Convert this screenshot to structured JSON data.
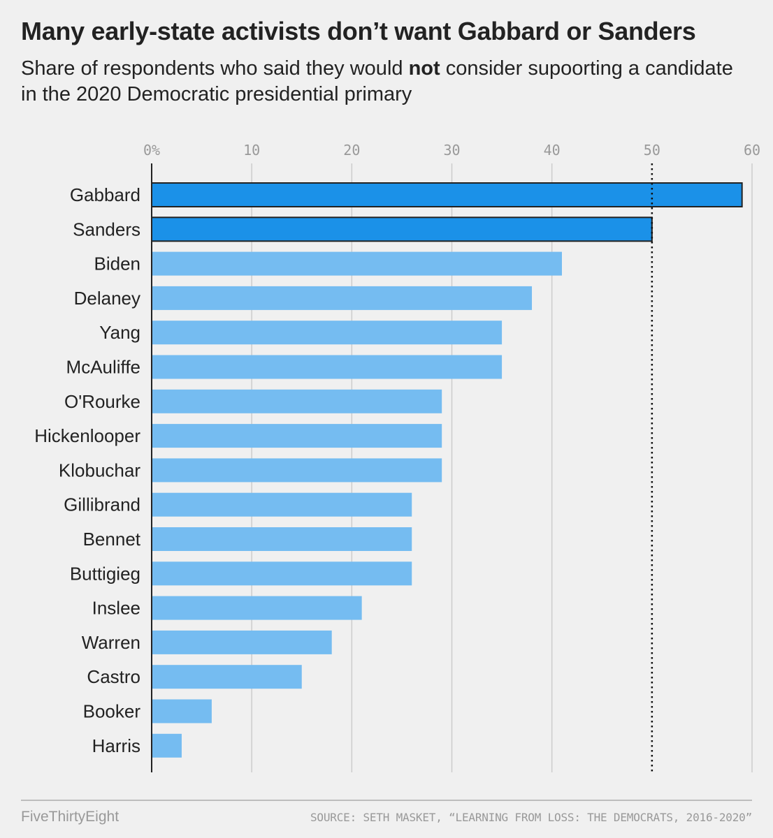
{
  "header": {
    "title": "Many early-state activists don’t want Gabbard or Sanders",
    "subtitle_before": "Share of respondents who said they would ",
    "subtitle_bold": "not",
    "subtitle_after": " consider supoorting a candidate in the 2020 Democratic presidential primary"
  },
  "footer": {
    "brand": "FiveThirtyEight",
    "source": "SOURCE: SETH MASKET, “LEARNING FROM LOSS: THE DEMOCRATS, 2016-2020”"
  },
  "chart_data": {
    "type": "bar",
    "orientation": "horizontal",
    "categories": [
      "Gabbard",
      "Sanders",
      "Biden",
      "Delaney",
      "Yang",
      "McAuliffe",
      "O'Rourke",
      "Hickenlooper",
      "Klobuchar",
      "Gillibrand",
      "Bennet",
      "Buttigieg",
      "Inslee",
      "Warren",
      "Castro",
      "Booker",
      "Harris"
    ],
    "values": [
      59,
      50,
      41,
      38,
      35,
      35,
      29,
      29,
      29,
      26,
      26,
      26,
      21,
      18,
      15,
      6,
      3
    ],
    "highlighted": [
      "Gabbard",
      "Sanders"
    ],
    "xlim": [
      0,
      60
    ],
    "xticks": [
      0,
      10,
      20,
      30,
      40,
      50,
      60
    ],
    "xtick_labels": [
      "0%",
      "10",
      "20",
      "30",
      "40",
      "50",
      "60"
    ],
    "reference_line": 50,
    "grid": true,
    "colors": {
      "highlight": "#1b91e8",
      "default": "#75bcf1",
      "outline": "#222222",
      "grid": "#cccccc"
    }
  }
}
